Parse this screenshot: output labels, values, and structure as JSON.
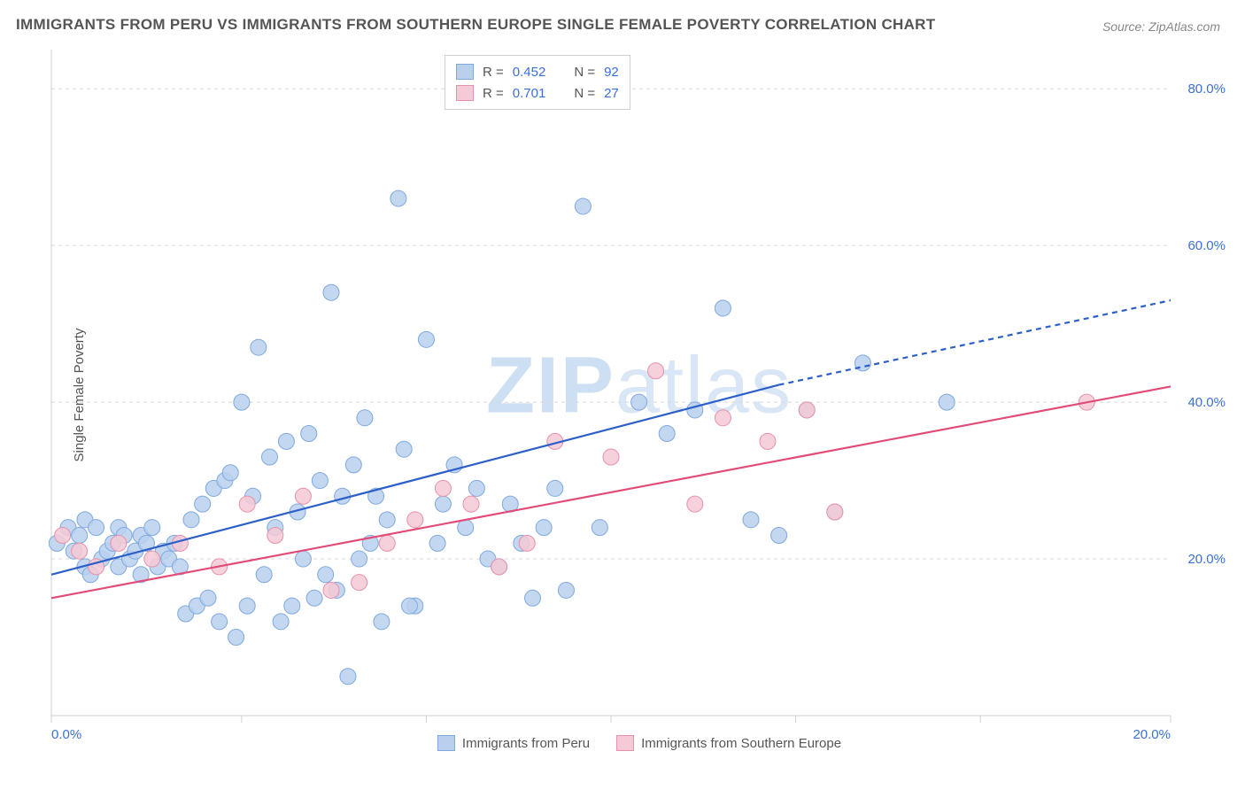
{
  "title": "IMMIGRANTS FROM PERU VS IMMIGRANTS FROM SOUTHERN EUROPE SINGLE FEMALE POVERTY CORRELATION CHART",
  "source": "Source: ZipAtlas.com",
  "ylabel": "Single Female Poverty",
  "watermark": {
    "bold": "ZIP",
    "light": "atlas"
  },
  "chart": {
    "type": "scatter",
    "background_color": "#ffffff",
    "grid_color": "#d8d8d8",
    "axis_color": "#d0d0d0",
    "xlim": [
      0,
      20
    ],
    "ylim": [
      0,
      85
    ],
    "xtick_positions": [
      0,
      3.4,
      6.7,
      10,
      13.3,
      16.6,
      20
    ],
    "xtick_labels": [
      "0.0%",
      "",
      "",
      "",
      "",
      "",
      "20.0%"
    ],
    "ytick_positions": [
      20,
      40,
      60,
      80
    ],
    "ytick_labels": [
      "20.0%",
      "40.0%",
      "60.0%",
      "80.0%"
    ],
    "label_fontsize": 15,
    "tick_color": "#3b6fd8",
    "series": [
      {
        "name": "Immigrants from Peru",
        "marker_color_fill": "#b8d0ee",
        "marker_color_stroke": "#7fa9dd",
        "marker_radius": 9,
        "marker_opacity": 0.85,
        "line_color": "#2d5fc9",
        "line_width": 2.2,
        "R": "0.452",
        "N": "92",
        "trend": {
          "x1": 0,
          "y1": 18,
          "x2": 14.5,
          "y2": 45,
          "dash_after_x": 13.0,
          "dash_y": 53
        },
        "points": [
          [
            0.1,
            22
          ],
          [
            0.3,
            24
          ],
          [
            0.4,
            21
          ],
          [
            0.5,
            23
          ],
          [
            0.6,
            19
          ],
          [
            0.6,
            25
          ],
          [
            0.7,
            18
          ],
          [
            0.8,
            24
          ],
          [
            0.9,
            20
          ],
          [
            1.0,
            21
          ],
          [
            1.1,
            22
          ],
          [
            1.2,
            19
          ],
          [
            1.2,
            24
          ],
          [
            1.3,
            23
          ],
          [
            1.4,
            20
          ],
          [
            1.5,
            21
          ],
          [
            1.6,
            23
          ],
          [
            1.6,
            18
          ],
          [
            1.7,
            22
          ],
          [
            1.8,
            24
          ],
          [
            1.9,
            19
          ],
          [
            2.0,
            21
          ],
          [
            2.1,
            20
          ],
          [
            2.2,
            22
          ],
          [
            2.3,
            19
          ],
          [
            2.4,
            13
          ],
          [
            2.5,
            25
          ],
          [
            2.6,
            14
          ],
          [
            2.7,
            27
          ],
          [
            2.8,
            15
          ],
          [
            2.9,
            29
          ],
          [
            3.0,
            12
          ],
          [
            3.1,
            30
          ],
          [
            3.2,
            31
          ],
          [
            3.3,
            10
          ],
          [
            3.4,
            40
          ],
          [
            3.5,
            14
          ],
          [
            3.6,
            28
          ],
          [
            3.7,
            47
          ],
          [
            3.8,
            18
          ],
          [
            3.9,
            33
          ],
          [
            4.0,
            24
          ],
          [
            4.1,
            12
          ],
          [
            4.2,
            35
          ],
          [
            4.3,
            14
          ],
          [
            4.4,
            26
          ],
          [
            4.5,
            20
          ],
          [
            4.6,
            36
          ],
          [
            4.7,
            15
          ],
          [
            4.8,
            30
          ],
          [
            4.9,
            18
          ],
          [
            5.0,
            54
          ],
          [
            5.1,
            16
          ],
          [
            5.2,
            28
          ],
          [
            5.3,
            5
          ],
          [
            5.4,
            32
          ],
          [
            5.5,
            20
          ],
          [
            5.6,
            38
          ],
          [
            5.7,
            22
          ],
          [
            5.8,
            28
          ],
          [
            6.0,
            25
          ],
          [
            6.2,
            66
          ],
          [
            6.3,
            34
          ],
          [
            6.5,
            14
          ],
          [
            6.7,
            48
          ],
          [
            6.9,
            22
          ],
          [
            7.0,
            27
          ],
          [
            7.2,
            32
          ],
          [
            7.4,
            24
          ],
          [
            7.6,
            29
          ],
          [
            7.8,
            20
          ],
          [
            8.0,
            19
          ],
          [
            8.2,
            27
          ],
          [
            8.4,
            22
          ],
          [
            8.6,
            15
          ],
          [
            8.8,
            24
          ],
          [
            9.0,
            29
          ],
          [
            9.2,
            16
          ],
          [
            9.5,
            65
          ],
          [
            9.8,
            24
          ],
          [
            10.5,
            40
          ],
          [
            11.0,
            36
          ],
          [
            11.5,
            39
          ],
          [
            12.0,
            52
          ],
          [
            12.5,
            25
          ],
          [
            13.0,
            23
          ],
          [
            13.5,
            39
          ],
          [
            14.0,
            26
          ],
          [
            14.5,
            45
          ],
          [
            16.0,
            40
          ],
          [
            5.9,
            12
          ],
          [
            6.4,
            14
          ]
        ]
      },
      {
        "name": "Immigrants from Southern Europe",
        "marker_color_fill": "#f5c9d5",
        "marker_color_stroke": "#e690aa",
        "marker_radius": 9,
        "marker_opacity": 0.85,
        "line_color": "#e24a78",
        "line_width": 2.2,
        "R": "0.701",
        "N": "27",
        "trend": {
          "x1": 0,
          "y1": 15,
          "x2": 20,
          "y2": 42
        },
        "points": [
          [
            0.2,
            23
          ],
          [
            0.5,
            21
          ],
          [
            0.8,
            19
          ],
          [
            1.2,
            22
          ],
          [
            1.8,
            20
          ],
          [
            2.3,
            22
          ],
          [
            3.0,
            19
          ],
          [
            3.5,
            27
          ],
          [
            4.0,
            23
          ],
          [
            4.5,
            28
          ],
          [
            5.0,
            16
          ],
          [
            5.5,
            17
          ],
          [
            6.0,
            22
          ],
          [
            6.5,
            25
          ],
          [
            7.0,
            29
          ],
          [
            7.5,
            27
          ],
          [
            8.0,
            19
          ],
          [
            8.5,
            22
          ],
          [
            9.0,
            35
          ],
          [
            10.0,
            33
          ],
          [
            10.8,
            44
          ],
          [
            11.5,
            27
          ],
          [
            12.0,
            38
          ],
          [
            12.8,
            35
          ],
          [
            13.5,
            39
          ],
          [
            14.0,
            26
          ],
          [
            18.5,
            40
          ]
        ]
      }
    ],
    "legend_box": {
      "r_label": "R =",
      "n_label": "N ="
    },
    "bottom_legend": [
      {
        "swatch_fill": "#b8d0ee",
        "swatch_stroke": "#7fa9dd",
        "label": "Immigrants from Peru"
      },
      {
        "swatch_fill": "#f5c9d5",
        "swatch_stroke": "#e690aa",
        "label": "Immigrants from Southern Europe"
      }
    ]
  }
}
